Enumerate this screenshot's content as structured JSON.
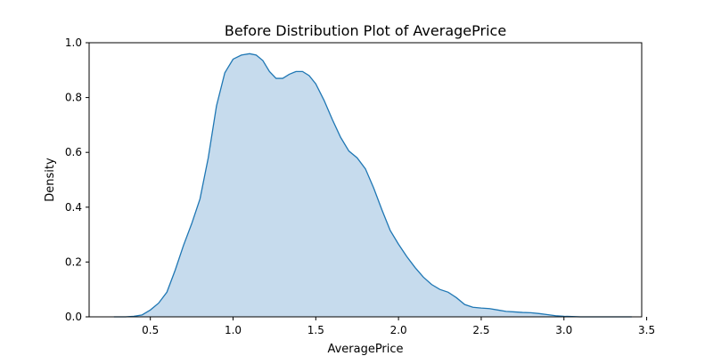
{
  "chart_data": {
    "type": "area",
    "title": "Before Distribution Plot of AveragePrice",
    "xlabel": "AveragePrice",
    "ylabel": "Density",
    "xlim": [
      0.13,
      3.47
    ],
    "ylim": [
      0.0,
      1.0
    ],
    "x_ticks": [
      "0.5",
      "1.0",
      "1.5",
      "2.0",
      "2.5",
      "3.0",
      "3.5"
    ],
    "y_ticks": [
      "0.0",
      "0.2",
      "0.4",
      "0.6",
      "0.8",
      "1.0"
    ],
    "grid": false,
    "legend": "none",
    "line_color": "#1f77b4",
    "fill_color": "#c6dbed",
    "series": [
      {
        "x": [
          0.28,
          0.35,
          0.4,
          0.45,
          0.5,
          0.55,
          0.6,
          0.65,
          0.7,
          0.75,
          0.8,
          0.85,
          0.9,
          0.95,
          1.0,
          1.05,
          1.1,
          1.14,
          1.18,
          1.22,
          1.26,
          1.3,
          1.34,
          1.38,
          1.42,
          1.46,
          1.5,
          1.55,
          1.6,
          1.65,
          1.7,
          1.75,
          1.8,
          1.85,
          1.9,
          1.95,
          2.0,
          2.05,
          2.1,
          2.15,
          2.2,
          2.25,
          2.3,
          2.35,
          2.4,
          2.45,
          2.5,
          2.55,
          2.6,
          2.65,
          2.7,
          2.75,
          2.8,
          2.85,
          2.9,
          2.95,
          3.0,
          3.05,
          3.1,
          3.2,
          3.3,
          3.41
        ],
        "y": [
          0.0,
          0.0,
          0.002,
          0.007,
          0.025,
          0.05,
          0.09,
          0.17,
          0.26,
          0.34,
          0.43,
          0.58,
          0.77,
          0.89,
          0.94,
          0.955,
          0.96,
          0.955,
          0.935,
          0.895,
          0.87,
          0.87,
          0.885,
          0.895,
          0.895,
          0.88,
          0.85,
          0.79,
          0.72,
          0.655,
          0.605,
          0.58,
          0.54,
          0.47,
          0.39,
          0.315,
          0.265,
          0.22,
          0.18,
          0.145,
          0.118,
          0.1,
          0.09,
          0.07,
          0.045,
          0.035,
          0.032,
          0.03,
          0.025,
          0.02,
          0.018,
          0.016,
          0.015,
          0.012,
          0.008,
          0.004,
          0.002,
          0.001,
          0.0,
          0.0,
          0.0,
          0.0
        ]
      }
    ]
  }
}
